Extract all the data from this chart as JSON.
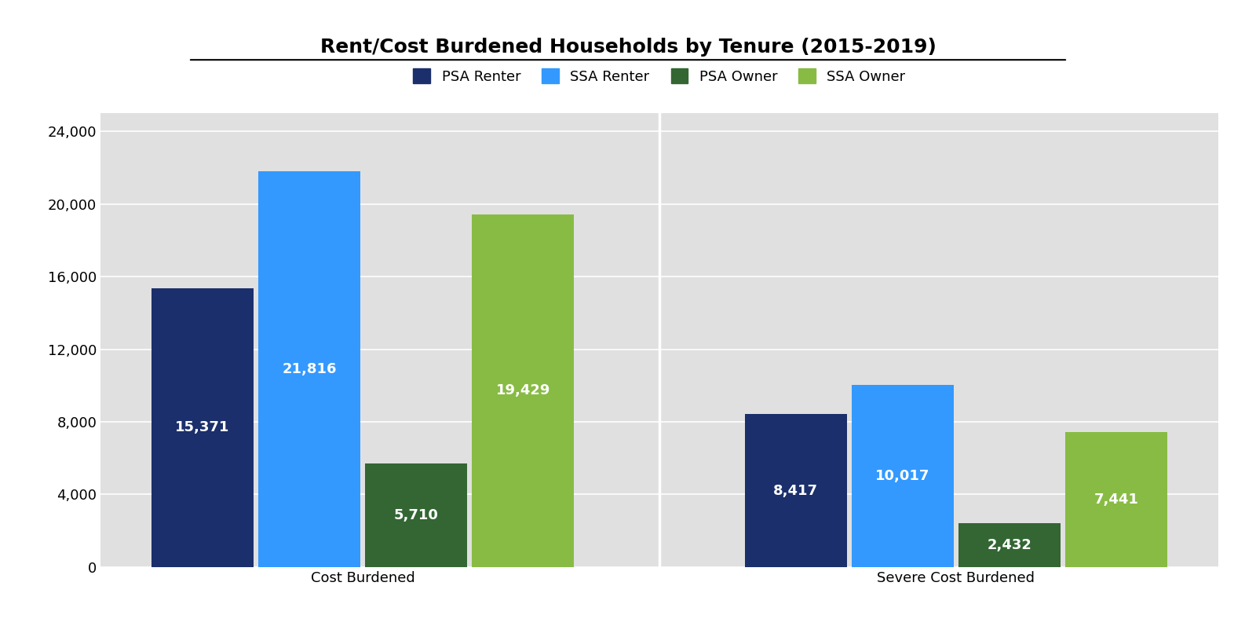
{
  "title": "Rent/Cost Burdened Households by Tenure (2015-2019)",
  "categories": [
    "Cost Burdened",
    "Severe Cost Burdened"
  ],
  "series": {
    "PSA Renter": [
      15371,
      8417
    ],
    "SSA Renter": [
      21816,
      10017
    ],
    "PSA Owner": [
      5710,
      2432
    ],
    "SSA Owner": [
      19429,
      7441
    ]
  },
  "colors": {
    "PSA Renter": "#1a2f6b",
    "SSA Renter": "#3399ff",
    "PSA Owner": "#336633",
    "SSA Owner": "#88bb44"
  },
  "ylim": [
    0,
    25000
  ],
  "yticks": [
    0,
    4000,
    8000,
    12000,
    16000,
    20000,
    24000
  ],
  "plot_bg": "#e0e0e0",
  "fig_bg": "#f0f0f0",
  "title_fontsize": 18,
  "legend_fontsize": 13,
  "bar_label_fontsize": 13,
  "tick_fontsize": 13
}
